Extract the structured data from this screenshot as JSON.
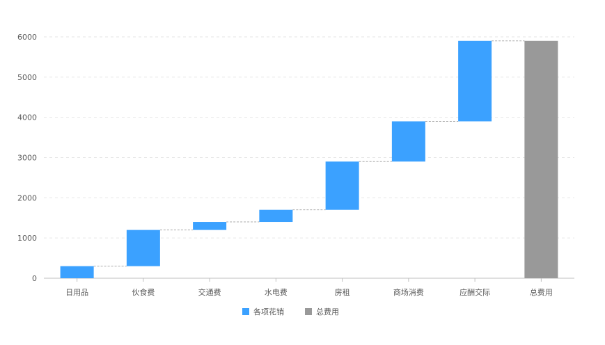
{
  "chart_data": {
    "type": "bar",
    "subtype": "waterfall",
    "categories": [
      "日用品",
      "伙食费",
      "交通费",
      "水电费",
      "房租",
      "商场消费",
      "应酬交际",
      "总费用"
    ],
    "series": [
      {
        "name": "各项花销",
        "values": [
          300,
          900,
          200,
          300,
          1200,
          1000,
          2000,
          null
        ],
        "color": "#3ba1ff"
      },
      {
        "name": "总费用",
        "values": [
          null,
          null,
          null,
          null,
          null,
          null,
          null,
          5900
        ],
        "color": "#999999"
      }
    ],
    "yticks": [
      "0",
      "1000",
      "2000",
      "3000",
      "4000",
      "5000",
      "6000"
    ],
    "ylim": [
      0,
      6000
    ],
    "grid": true,
    "legend_position": "bottom",
    "connector_color": "#aaaaaa"
  }
}
